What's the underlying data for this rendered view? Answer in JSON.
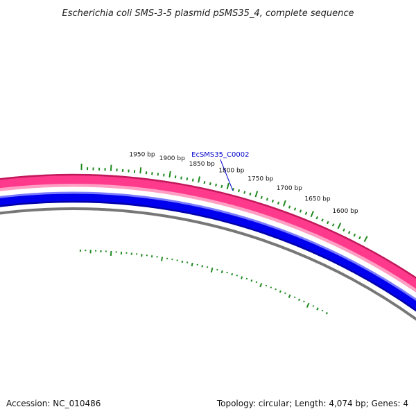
{
  "title": "Escherichia coli SMS-3-5 plasmid pSMS35_4, complete sequence",
  "footer": {
    "accession": "Accession: NC_010486",
    "summary": "Topology: circular; Length: 4,074 bp; Genes: 4"
  },
  "plasmid": {
    "length_bp": 4074,
    "topology": "circular",
    "gene_count": 4
  },
  "ticks": [
    {
      "bp": 1600,
      "label": "1600 bp"
    },
    {
      "bp": 1650,
      "label": "1650 bp"
    },
    {
      "bp": 1700,
      "label": "1700 bp"
    },
    {
      "bp": 1750,
      "label": "1750 bp"
    },
    {
      "bp": 1800,
      "label": "1800 bp"
    },
    {
      "bp": 1850,
      "label": "1850 bp"
    },
    {
      "bp": 1900,
      "label": "1900 bp"
    },
    {
      "bp": 1950,
      "label": "1950 bp"
    }
  ],
  "gene_labels": [
    {
      "name": "EcSMS35_C0002",
      "bp": 1790
    }
  ],
  "colors": {
    "outer_ring_dark": "#c2185b",
    "outer_ring": "#ff3a8c",
    "outer_ring_light": "#ff9fc3",
    "gene_ring_dark": "#0000a8",
    "gene_ring": "#0000ee",
    "gene_ring_light": "#7b7bff",
    "backbone": "#777777",
    "gc_skew": "#1f8a1f",
    "gene_label": "#0000cc"
  }
}
